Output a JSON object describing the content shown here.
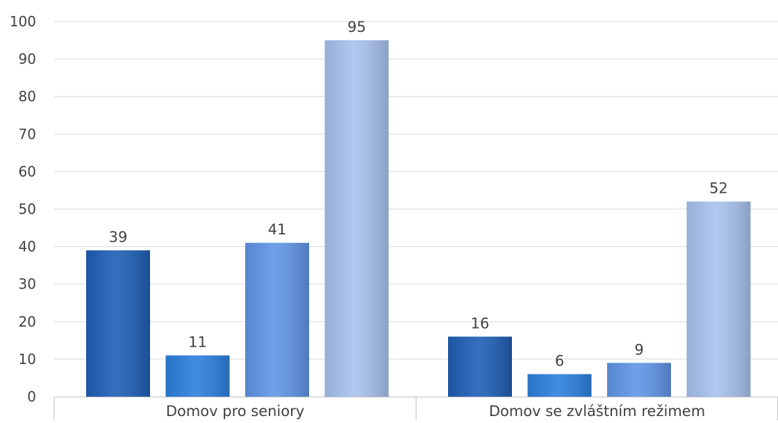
{
  "chart_data": {
    "type": "bar",
    "categories": [
      "Domov pro seniory",
      "Domov se zvláštním režimem"
    ],
    "series": [
      {
        "color": "#1f5fb5",
        "values": [
          39,
          16
        ]
      },
      {
        "color": "#2b80dd",
        "values": [
          11,
          6
        ]
      },
      {
        "color": "#5f95e6",
        "values": [
          41,
          9
        ]
      },
      {
        "color": "#a8c2ee",
        "values": [
          95,
          52
        ]
      }
    ],
    "ylim": [
      0,
      100
    ],
    "yticks": [
      0,
      10,
      20,
      30,
      40,
      50,
      60,
      70,
      80,
      90,
      100
    ],
    "grid": true,
    "legend": "none",
    "data_labels": true,
    "colors": {
      "grid": "#d9d9d9",
      "axis": "#bfbfbf",
      "text": "#404040"
    }
  }
}
